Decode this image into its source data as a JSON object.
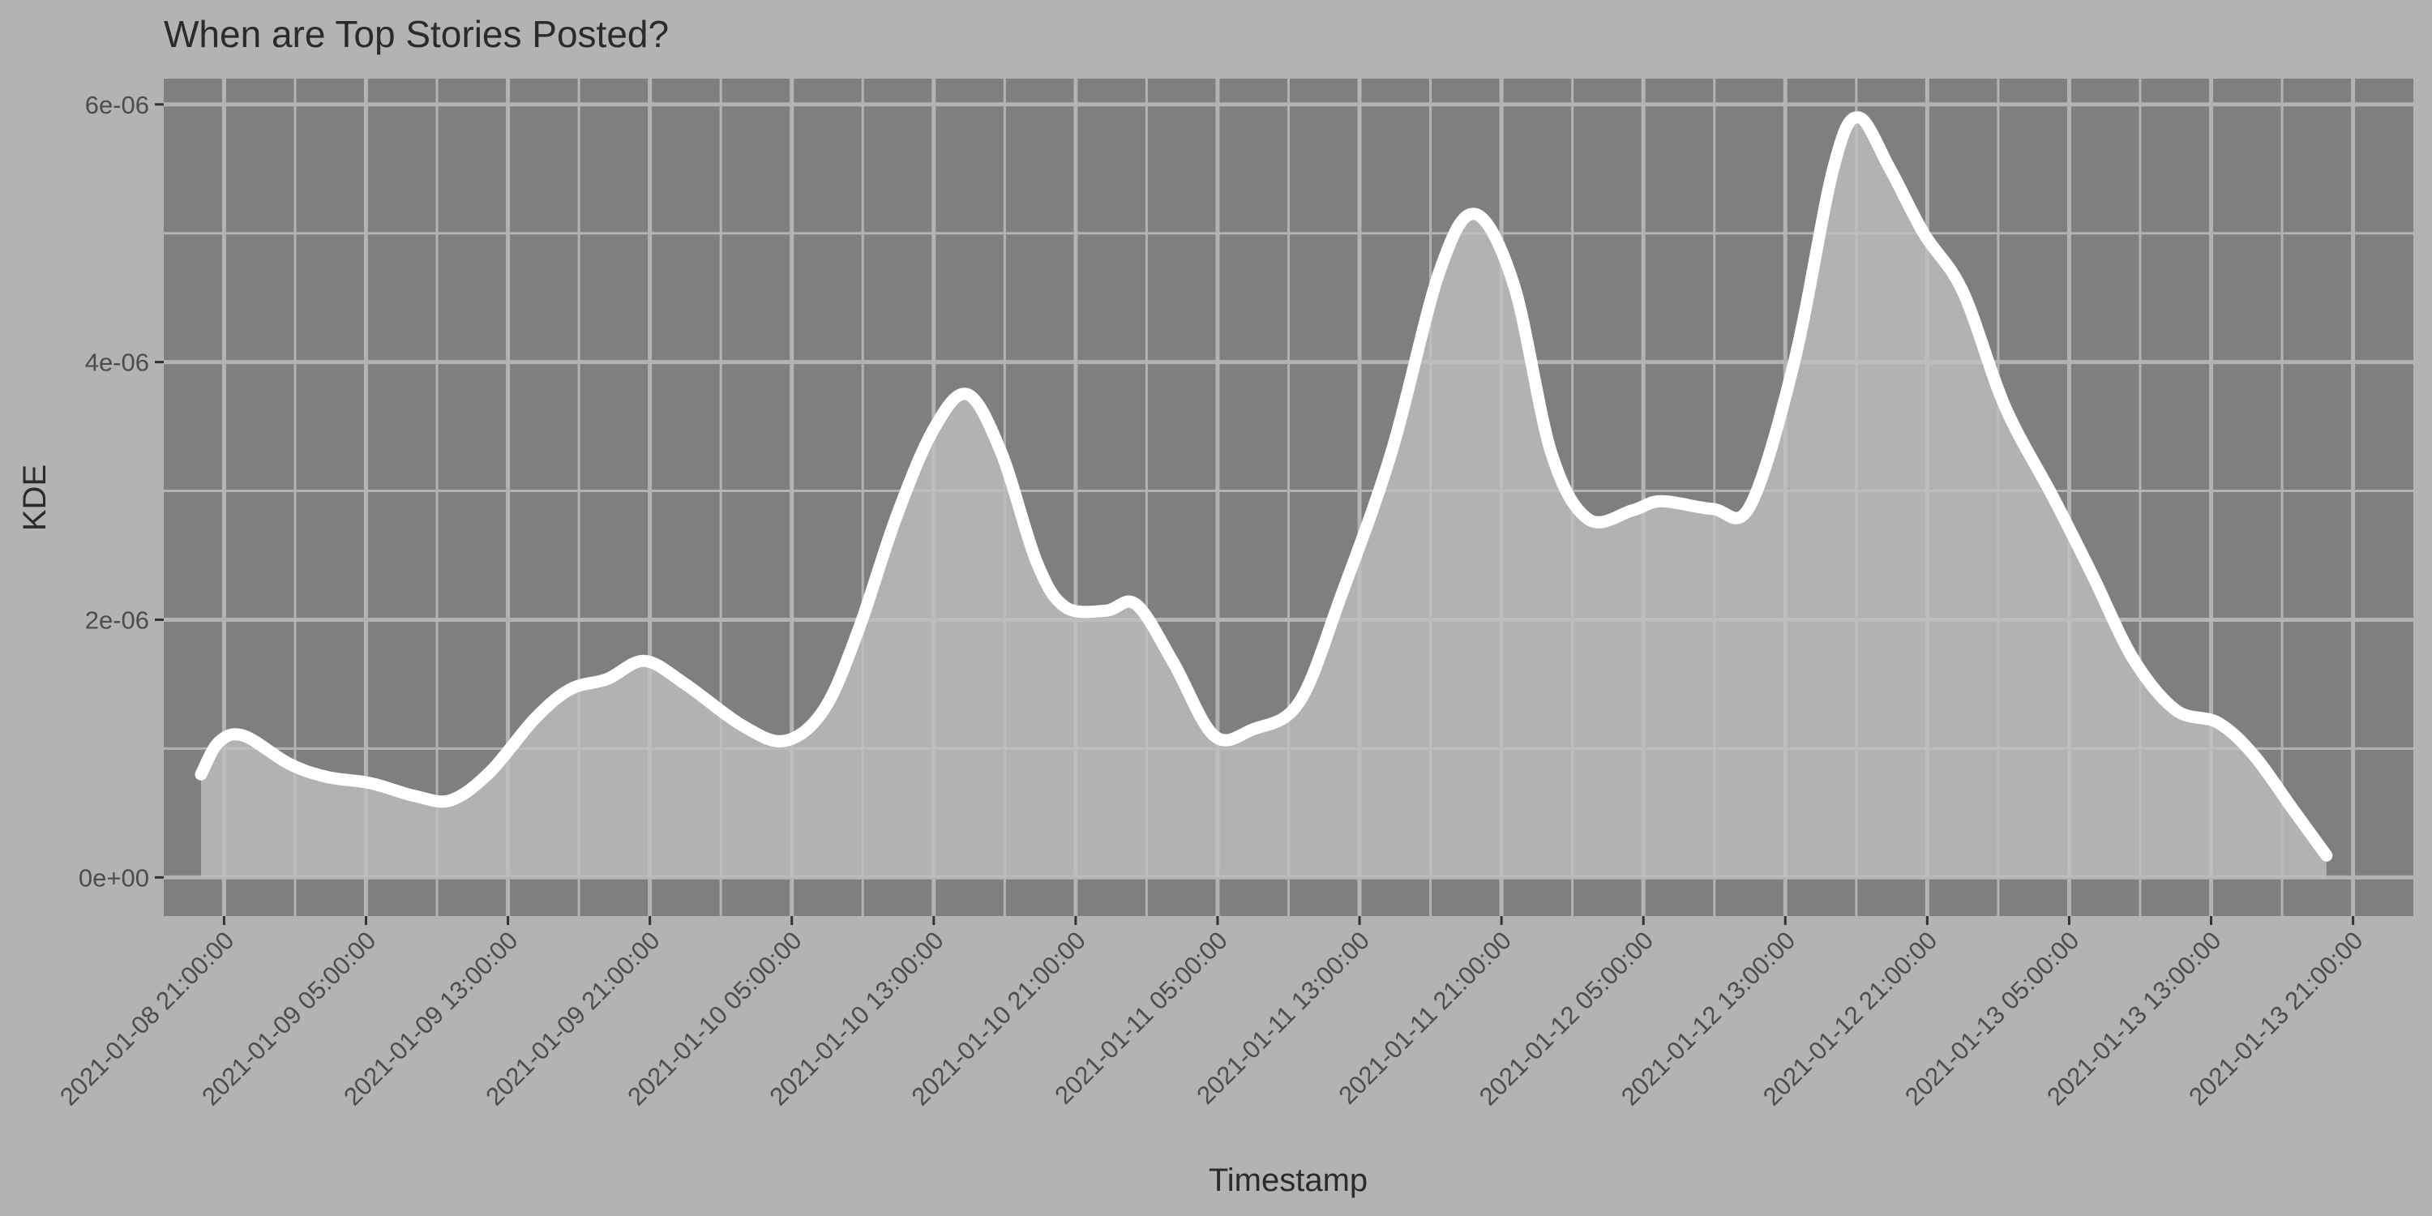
{
  "chart_data": {
    "type": "area",
    "title": "When are Top Stories Posted?",
    "xlabel": "Timestamp",
    "ylabel": "KDE",
    "x_ticks": [
      "2021-01-08 21:00:00",
      "2021-01-09 05:00:00",
      "2021-01-09 13:00:00",
      "2021-01-09 21:00:00",
      "2021-01-10 05:00:00",
      "2021-01-10 13:00:00",
      "2021-01-10 21:00:00",
      "2021-01-11 05:00:00",
      "2021-01-11 13:00:00",
      "2021-01-11 21:00:00",
      "2021-01-12 05:00:00",
      "2021-01-12 13:00:00",
      "2021-01-12 21:00:00",
      "2021-01-13 05:00:00",
      "2021-01-13 13:00:00",
      "2021-01-13 21:00:00"
    ],
    "y_ticks": [
      {
        "value": 0,
        "label": "0e+00"
      },
      {
        "value": 2e-06,
        "label": "2e-06"
      },
      {
        "value": 4e-06,
        "label": "4e-06"
      },
      {
        "value": 6e-06,
        "label": "6e-06"
      }
    ],
    "ylim": [
      -3e-07,
      6.2e-06
    ],
    "xlim": [
      "2021-01-08 17:36:00",
      "2021-01-14 00:24:00"
    ],
    "grid": true,
    "colors": {
      "background": "#b3b3b3",
      "panel": "#7f7f7f",
      "grid": "#b3b3b3",
      "fill": "#c0c0c0",
      "line": "#ffffff",
      "text": "#2b2b2b",
      "tick_text": "#4d4d4d"
    },
    "points": [
      {
        "x": "2021-01-08 19:42:00",
        "y": 8e-07
      },
      {
        "x": "2021-01-08 20:42:00",
        "y": 1.05e-06
      },
      {
        "x": "2021-01-08 22:06:00",
        "y": 1.1e-06
      },
      {
        "x": "2021-01-09 00:42:00",
        "y": 8.8e-07
      },
      {
        "x": "2021-01-09 02:48:00",
        "y": 7.8e-07
      },
      {
        "x": "2021-01-09 05:18:00",
        "y": 7.3e-07
      },
      {
        "x": "2021-01-09 07:48:00",
        "y": 6.3e-07
      },
      {
        "x": "2021-01-09 09:48:00",
        "y": 6e-07
      },
      {
        "x": "2021-01-09 12:00:00",
        "y": 8.2e-07
      },
      {
        "x": "2021-01-09 14:30:00",
        "y": 1.23e-06
      },
      {
        "x": "2021-01-09 16:30:00",
        "y": 1.46e-06
      },
      {
        "x": "2021-01-09 18:36:00",
        "y": 1.54e-06
      },
      {
        "x": "2021-01-09 20:42:00",
        "y": 1.68e-06
      },
      {
        "x": "2021-01-09 23:00:00",
        "y": 1.5e-06
      },
      {
        "x": "2021-01-10 02:12:00",
        "y": 1.18e-06
      },
      {
        "x": "2021-01-10 04:36:00",
        "y": 1.06e-06
      },
      {
        "x": "2021-01-10 06:48:00",
        "y": 1.3e-06
      },
      {
        "x": "2021-01-10 08:42:00",
        "y": 1.9e-06
      },
      {
        "x": "2021-01-10 10:54:00",
        "y": 2.8e-06
      },
      {
        "x": "2021-01-10 13:00:00",
        "y": 3.48e-06
      },
      {
        "x": "2021-01-10 14:54:00",
        "y": 3.75e-06
      },
      {
        "x": "2021-01-10 16:48:00",
        "y": 3.3e-06
      },
      {
        "x": "2021-01-10 18:48:00",
        "y": 2.45e-06
      },
      {
        "x": "2021-01-10 20:24:00",
        "y": 2.1e-06
      },
      {
        "x": "2021-01-10 22:42:00",
        "y": 2.07e-06
      },
      {
        "x": "2021-01-11 00:24:00",
        "y": 2.12e-06
      },
      {
        "x": "2021-01-11 02:30:00",
        "y": 1.67e-06
      },
      {
        "x": "2021-01-11 04:48:00",
        "y": 1.1e-06
      },
      {
        "x": "2021-01-11 07:00:00",
        "y": 1.15e-06
      },
      {
        "x": "2021-01-11 09:36:00",
        "y": 1.36e-06
      },
      {
        "x": "2021-01-11 12:00:00",
        "y": 2.2e-06
      },
      {
        "x": "2021-01-11 14:48:00",
        "y": 3.3e-06
      },
      {
        "x": "2021-01-11 17:30:00",
        "y": 4.7e-06
      },
      {
        "x": "2021-01-11 19:30:00",
        "y": 5.15e-06
      },
      {
        "x": "2021-01-11 21:42:00",
        "y": 4.6e-06
      },
      {
        "x": "2021-01-11 23:48:00",
        "y": 3.3e-06
      },
      {
        "x": "2021-01-12 01:54:00",
        "y": 2.78e-06
      },
      {
        "x": "2021-01-12 04:24:00",
        "y": 2.85e-06
      },
      {
        "x": "2021-01-12 06:00:00",
        "y": 2.92e-06
      },
      {
        "x": "2021-01-12 08:54:00",
        "y": 2.86e-06
      },
      {
        "x": "2021-01-12 11:00:00",
        "y": 2.88e-06
      },
      {
        "x": "2021-01-12 13:30:00",
        "y": 4e-06
      },
      {
        "x": "2021-01-12 15:42:00",
        "y": 5.5e-06
      },
      {
        "x": "2021-01-12 17:06:00",
        "y": 5.9e-06
      },
      {
        "x": "2021-01-12 18:54:00",
        "y": 5.5e-06
      },
      {
        "x": "2021-01-12 20:48:00",
        "y": 5e-06
      },
      {
        "x": "2021-01-12 23:00:00",
        "y": 4.55e-06
      },
      {
        "x": "2021-01-13 01:24:00",
        "y": 3.65e-06
      },
      {
        "x": "2021-01-13 04:06:00",
        "y": 2.95e-06
      },
      {
        "x": "2021-01-13 06:18:00",
        "y": 2.35e-06
      },
      {
        "x": "2021-01-13 08:36:00",
        "y": 1.7e-06
      },
      {
        "x": "2021-01-13 11:00:00",
        "y": 1.3e-06
      },
      {
        "x": "2021-01-13 13:24:00",
        "y": 1.2e-06
      },
      {
        "x": "2021-01-13 15:24:00",
        "y": 9.5e-07
      },
      {
        "x": "2021-01-13 17:30:00",
        "y": 5.5e-07
      },
      {
        "x": "2021-01-13 19:30:00",
        "y": 1.7e-07
      }
    ]
  }
}
